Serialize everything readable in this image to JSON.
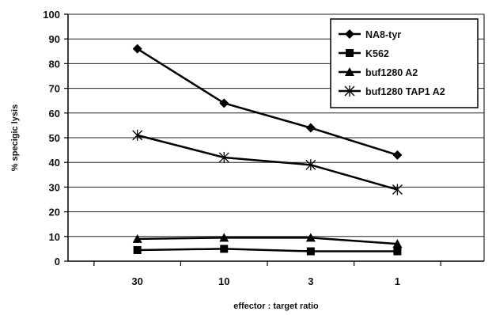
{
  "chart_data": {
    "type": "line",
    "title": "",
    "xlabel": "effector : target ratio",
    "ylabel": "% specigic lysis",
    "categories": [
      "30",
      "10",
      "3",
      "1"
    ],
    "ylim": [
      0,
      100
    ],
    "yticks": [
      0,
      10,
      20,
      30,
      40,
      50,
      60,
      70,
      80,
      90,
      100
    ],
    "grid": "horizontal",
    "legend_position": "top-right",
    "series": [
      {
        "name": "NA8-tyr",
        "marker": "diamond",
        "color": "#000000",
        "values": [
          86,
          64,
          54,
          43
        ]
      },
      {
        "name": "K562",
        "marker": "square",
        "color": "#000000",
        "values": [
          4.5,
          5,
          4,
          4
        ]
      },
      {
        "name": "buf1280 A2",
        "marker": "triangle",
        "color": "#000000",
        "values": [
          9,
          9.5,
          9.5,
          7
        ]
      },
      {
        "name": "buf1280 TAP1 A2",
        "marker": "star",
        "color": "#000000",
        "values": [
          51,
          42,
          39,
          29
        ]
      }
    ]
  }
}
